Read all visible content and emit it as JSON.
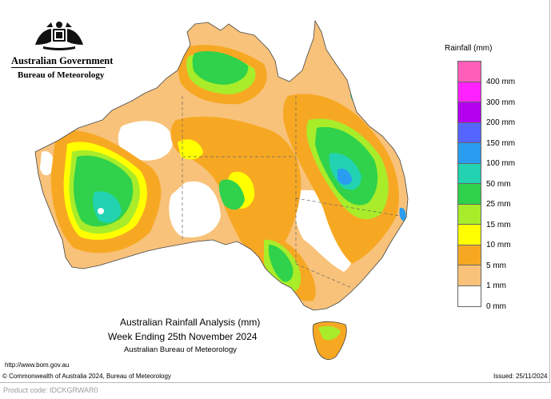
{
  "header": {
    "government": "Australian Government",
    "bureau": "Bureau of Meteorology",
    "crest_icon": "coat-of-arms-icon"
  },
  "legend": {
    "title": "Rainfall (mm)",
    "items": [
      {
        "label": "400 mm",
        "color": "#ff5fb8"
      },
      {
        "label": "300 mm",
        "color": "#ff22ff"
      },
      {
        "label": "200 mm",
        "color": "#b400ee"
      },
      {
        "label": "150 mm",
        "color": "#5566ff"
      },
      {
        "label": "100 mm",
        "color": "#2a9df0"
      },
      {
        "label": "50 mm",
        "color": "#22d2b0"
      },
      {
        "label": "25 mm",
        "color": "#2fd24a"
      },
      {
        "label": "15 mm",
        "color": "#a8ec2a"
      },
      {
        "label": "10 mm",
        "color": "#ffff00"
      },
      {
        "label": "5 mm",
        "color": "#f7a823"
      },
      {
        "label": "1 mm",
        "color": "#f8c27a"
      },
      {
        "label": "0 mm",
        "color": "#ffffff"
      }
    ]
  },
  "caption": {
    "line1": "Australian Rainfall Analysis (mm)",
    "line2": "Week Ending 25th November 2024",
    "line3": "Australian Bureau of Meteorology"
  },
  "footer": {
    "url": "http://www.bom.gov.au",
    "copyright": "© Commonwealth of Australia 2024, Bureau of Meteorology",
    "issued": "Issued: 25/11/2024",
    "product_code": "Product code: IDCKGRWAR0"
  }
}
